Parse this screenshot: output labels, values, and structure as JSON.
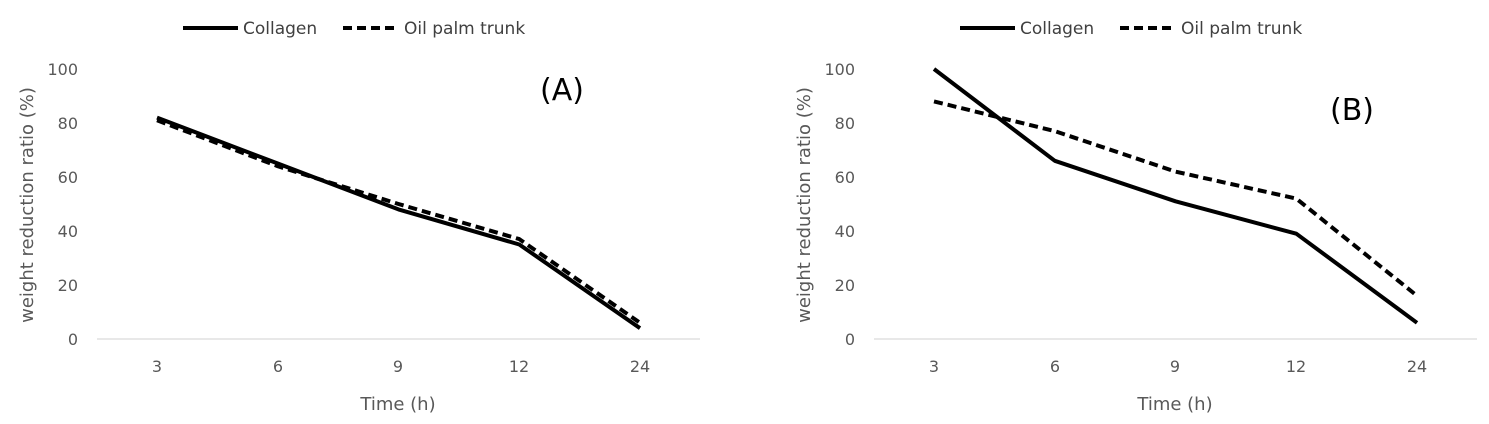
{
  "chart_data": [
    {
      "type": "line",
      "panel_label": "(A)",
      "categories": [
        "3",
        "6",
        "9",
        "12",
        "24"
      ],
      "series": [
        {
          "name": "Collagen",
          "style": "solid",
          "values": [
            82,
            65,
            48,
            35,
            4
          ]
        },
        {
          "name": "Oil palm trunk",
          "style": "dashed",
          "values": [
            81,
            64,
            50,
            37,
            6
          ]
        }
      ],
      "title": "",
      "xlabel": "Time (h)",
      "ylabel": "weight reduction ratio (%)",
      "ylim": [
        0,
        100
      ],
      "yticks": [
        "0",
        "20",
        "40",
        "60",
        "80",
        "100"
      ],
      "legend_position": "top",
      "grid": false
    },
    {
      "type": "line",
      "panel_label": "(B)",
      "categories": [
        "3",
        "6",
        "9",
        "12",
        "24"
      ],
      "series": [
        {
          "name": "Collagen",
          "style": "solid",
          "values": [
            100,
            66,
            51,
            39,
            6
          ]
        },
        {
          "name": "Oil palm trunk",
          "style": "dashed",
          "values": [
            88,
            77,
            62,
            52,
            16
          ]
        }
      ],
      "title": "",
      "xlabel": "Time (h)",
      "ylabel": "weight reduction ratio (%)",
      "ylim": [
        0,
        100
      ],
      "yticks": [
        "0",
        "20",
        "40",
        "60",
        "80",
        "100"
      ],
      "legend_position": "top",
      "grid": false
    }
  ],
  "colors": {
    "series": "#000000",
    "axis": "#d9d9d9",
    "text": "#595959"
  }
}
